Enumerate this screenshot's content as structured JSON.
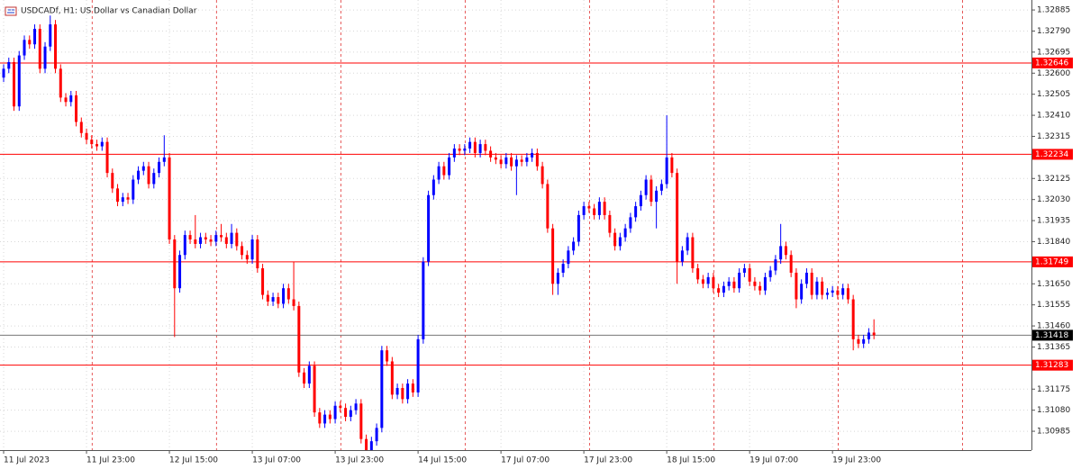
{
  "chart_data": {
    "type": "candlestick",
    "title": "USDCADf, H1:  US Dollar vs Canadian Dollar",
    "bull_color": "#0000ff",
    "bear_color": "#ff0000",
    "grid": true,
    "ylim": [
      1.309,
      1.3293
    ],
    "yticks": [
      1.32885,
      {
        "value": 1.3279,
        "label": "1.32790"
      },
      1.32695,
      {
        "value": 1.326,
        "label": "1.32600"
      },
      1.32505,
      {
        "value": 1.3241,
        "label": "1.32410"
      },
      1.32315,
      1.32125,
      {
        "value": 1.3203,
        "label": "1.32030"
      },
      1.31935,
      {
        "value": 1.3184,
        "label": "1.31840"
      },
      {
        "value": 1.3165,
        "label": "1.31650"
      },
      1.31555,
      {
        "value": 1.3146,
        "label": "1.31460"
      },
      1.31365,
      1.31175,
      {
        "value": 1.3108,
        "label": "1.31080"
      },
      1.30985
    ],
    "xlim": [
      -0.7,
      198.4
    ],
    "xticks": [
      {
        "value": 0,
        "label": "11 Jul 2023"
      },
      {
        "value": 16,
        "label": "11 Jul 23:00"
      },
      {
        "value": 32,
        "label": "12 Jul 15:00"
      },
      {
        "value": 48,
        "label": "13 Jul 07:00"
      },
      {
        "value": 64,
        "label": "13 Jul 23:00"
      },
      {
        "value": 80,
        "label": "14 Jul 15:00"
      },
      {
        "value": 96,
        "label": "17 Jul 07:00"
      },
      {
        "value": 112,
        "label": "17 Jul 23:00"
      },
      {
        "value": 128,
        "label": "18 Jul 15:00"
      },
      {
        "value": 144,
        "label": "19 Jul 07:00"
      },
      {
        "value": 160,
        "label": "19 Jul 23:00"
      }
    ],
    "levels": [
      1.32646,
      1.32234,
      1.31749,
      1.31283
    ],
    "level_color": "#ff0000",
    "bid": 1.31418,
    "open": [
      1.3258,
      1.3262,
      1.3265,
      1.3245,
      1.3268,
      1.3275,
      1.3273,
      1.328,
      1.3262,
      1.3272,
      1.3282,
      1.3262,
      1.3249,
      1.3247,
      1.325,
      1.3238,
      1.3233,
      1.323,
      1.3228,
      1.3227,
      1.3229,
      1.3215,
      1.3208,
      1.3202,
      1.3204,
      1.3203,
      1.3212,
      1.3216,
      1.3218,
      1.321,
      1.3215,
      1.322,
      1.3222,
      1.3185,
      1.3163,
      1.3178,
      1.3187,
      1.3185,
      1.3183,
      1.3186,
      1.3185,
      1.3184,
      1.3187,
      1.3186,
      1.3183,
      1.3188,
      1.3182,
      1.3178,
      1.3176,
      1.3185,
      1.3172,
      1.316,
      1.3157,
      1.3159,
      1.3156,
      1.3163,
      1.3158,
      1.3155,
      1.3125,
      1.312,
      1.3128,
      1.3107,
      1.3102,
      1.3106,
      1.3104,
      1.311,
      1.3109,
      1.3105,
      1.3108,
      1.3111,
      1.3095,
      1.309,
      1.3094,
      1.31,
      1.3135,
      1.313,
      1.3115,
      1.3118,
      1.3113,
      1.312,
      1.3116,
      1.314,
      1.3175,
      1.3205,
      1.3212,
      1.3218,
      1.3214,
      1.3222,
      1.3226,
      1.3225,
      1.3226,
      1.3229,
      1.3224,
      1.3228,
      1.3225,
      1.3222,
      1.3221,
      1.3219,
      1.3222,
      1.3218,
      1.3221,
      1.322,
      1.3222,
      1.3224,
      1.3218,
      1.321,
      1.319,
      1.3165,
      1.317,
      1.3174,
      1.318,
      1.3184,
      1.3196,
      1.32,
      1.3199,
      1.3196,
      1.3202,
      1.3196,
      1.3188,
      1.3182,
      1.3186,
      1.319,
      1.3195,
      1.32,
      1.3205,
      1.3212,
      1.3202,
      1.3207,
      1.321,
      1.3222,
      1.3215,
      1.3175,
      1.318,
      1.3186,
      1.3172,
      1.3167,
      1.3165,
      1.3168,
      1.3163,
      1.3161,
      1.3164,
      1.3166,
      1.3163,
      1.317,
      1.3172,
      1.3166,
      1.3164,
      1.3162,
      1.3168,
      1.3171,
      1.3176,
      1.3182,
      1.3178,
      1.317,
      1.3158,
      1.3165,
      1.317,
      1.316,
      1.3166,
      1.316,
      1.3161,
      1.3162,
      1.316,
      1.3163,
      1.3158,
      1.314,
      1.3138,
      1.314,
      1.3143
    ],
    "high": [
      1.3264,
      1.3267,
      1.3267,
      1.327,
      1.3277,
      1.3277,
      1.3282,
      1.3282,
      1.3274,
      1.3286,
      1.3284,
      1.3264,
      1.3251,
      1.3252,
      1.3252,
      1.324,
      1.3235,
      1.3232,
      1.323,
      1.3231,
      1.3231,
      1.3217,
      1.321,
      1.3206,
      1.3206,
      1.3214,
      1.3218,
      1.322,
      1.322,
      1.3217,
      1.3222,
      1.3232,
      1.3224,
      1.3187,
      1.318,
      1.3189,
      1.3189,
      1.3196,
      1.3188,
      1.3188,
      1.3187,
      1.3189,
      1.3192,
      1.3188,
      1.3192,
      1.319,
      1.3184,
      1.318,
      1.3187,
      1.3187,
      1.3174,
      1.3162,
      1.3161,
      1.3161,
      1.3165,
      1.3165,
      1.3175,
      1.3157,
      1.3127,
      1.313,
      1.313,
      1.3109,
      1.3108,
      1.3108,
      1.3112,
      1.3112,
      1.3111,
      1.311,
      1.3113,
      1.3113,
      1.3097,
      1.3096,
      1.3102,
      1.3137,
      1.3137,
      1.3132,
      1.312,
      1.312,
      1.3122,
      1.3122,
      1.3142,
      1.3177,
      1.3207,
      1.3214,
      1.322,
      1.322,
      1.3224,
      1.3228,
      1.3228,
      1.3228,
      1.3231,
      1.3231,
      1.323,
      1.323,
      1.3227,
      1.3224,
      1.3223,
      1.3224,
      1.3224,
      1.3223,
      1.3223,
      1.3224,
      1.3226,
      1.3226,
      1.322,
      1.3212,
      1.3192,
      1.3172,
      1.3176,
      1.3182,
      1.3186,
      1.3198,
      1.3202,
      1.3202,
      1.3201,
      1.3204,
      1.3204,
      1.3198,
      1.319,
      1.3188,
      1.3192,
      1.3197,
      1.3202,
      1.3207,
      1.3214,
      1.3214,
      1.3209,
      1.3212,
      1.3241,
      1.3224,
      1.3217,
      1.3182,
      1.3188,
      1.3188,
      1.3174,
      1.3169,
      1.317,
      1.317,
      1.3165,
      1.3166,
      1.3168,
      1.3168,
      1.3172,
      1.3174,
      1.3174,
      1.3168,
      1.3166,
      1.317,
      1.3173,
      1.3178,
      1.3192,
      1.3184,
      1.318,
      1.3172,
      1.3167,
      1.3172,
      1.3172,
      1.3168,
      1.3168,
      1.3163,
      1.3164,
      1.3164,
      1.3165,
      1.3165,
      1.316,
      1.3142,
      1.3142,
      1.3145,
      1.3149
    ],
    "low": [
      1.3256,
      1.326,
      1.3243,
      1.3243,
      1.3266,
      1.3271,
      1.3271,
      1.326,
      1.326,
      1.327,
      1.326,
      1.3247,
      1.3245,
      1.3245,
      1.3236,
      1.3231,
      1.3228,
      1.3226,
      1.3225,
      1.3225,
      1.3213,
      1.3206,
      1.32,
      1.32,
      1.3201,
      1.3201,
      1.321,
      1.3214,
      1.3208,
      1.3208,
      1.3213,
      1.3218,
      1.3183,
      1.3141,
      1.3161,
      1.3176,
      1.3183,
      1.3181,
      1.3181,
      1.3183,
      1.3182,
      1.3182,
      1.3184,
      1.3181,
      1.3181,
      1.318,
      1.3176,
      1.3174,
      1.3174,
      1.317,
      1.3158,
      1.3155,
      1.3155,
      1.3154,
      1.3154,
      1.3156,
      1.3153,
      1.3123,
      1.3118,
      1.3118,
      1.3105,
      1.31,
      1.31,
      1.3102,
      1.3102,
      1.3107,
      1.3103,
      1.3103,
      1.3106,
      1.3093,
      1.3088,
      1.3088,
      1.3092,
      1.3098,
      1.3128,
      1.3113,
      1.3113,
      1.3111,
      1.3111,
      1.3114,
      1.3114,
      1.3138,
      1.3173,
      1.3203,
      1.321,
      1.3212,
      1.3212,
      1.322,
      1.3223,
      1.3223,
      1.3224,
      1.3222,
      1.3222,
      1.3223,
      1.322,
      1.3219,
      1.3217,
      1.3217,
      1.3216,
      1.3205,
      1.3218,
      1.3218,
      1.322,
      1.3216,
      1.3208,
      1.3188,
      1.316,
      1.316,
      1.3168,
      1.3172,
      1.3178,
      1.3182,
      1.3194,
      1.3197,
      1.3194,
      1.3194,
      1.3194,
      1.3186,
      1.318,
      1.318,
      1.3184,
      1.3188,
      1.3193,
      1.3198,
      1.3203,
      1.32,
      1.319,
      1.3205,
      1.3208,
      1.3213,
      1.3165,
      1.3173,
      1.3178,
      1.317,
      1.3165,
      1.3163,
      1.3163,
      1.3161,
      1.3159,
      1.3159,
      1.3162,
      1.3161,
      1.3161,
      1.3168,
      1.3164,
      1.3162,
      1.316,
      1.316,
      1.3166,
      1.3169,
      1.3174,
      1.3176,
      1.3168,
      1.3154,
      1.3156,
      1.3163,
      1.3158,
      1.3158,
      1.3158,
      1.3158,
      1.3159,
      1.3158,
      1.3158,
      1.3156,
      1.3135,
      1.3136,
      1.3136,
      1.3138,
      1.314
    ],
    "close": [
      1.3262,
      1.3265,
      1.3245,
      1.3268,
      1.3275,
      1.3273,
      1.328,
      1.3262,
      1.3272,
      1.3282,
      1.3262,
      1.3249,
      1.3247,
      1.325,
      1.3238,
      1.3233,
      1.323,
      1.3228,
      1.3227,
      1.3229,
      1.3215,
      1.3208,
      1.3202,
      1.3204,
      1.3203,
      1.3212,
      1.3216,
      1.3218,
      1.321,
      1.3215,
      1.322,
      1.3222,
      1.3185,
      1.3163,
      1.3178,
      1.3187,
      1.3185,
      1.3183,
      1.3186,
      1.3185,
      1.3184,
      1.3187,
      1.3186,
      1.3183,
      1.3188,
      1.3182,
      1.3178,
      1.3176,
      1.3185,
      1.3172,
      1.316,
      1.3157,
      1.3159,
      1.3156,
      1.3163,
      1.3158,
      1.3155,
      1.3125,
      1.312,
      1.3128,
      1.3107,
      1.3102,
      1.3106,
      1.3104,
      1.311,
      1.3109,
      1.3105,
      1.3108,
      1.3111,
      1.3095,
      1.309,
      1.3094,
      1.31,
      1.3135,
      1.313,
      1.3115,
      1.3118,
      1.3113,
      1.312,
      1.3116,
      1.314,
      1.3175,
      1.3205,
      1.3212,
      1.3218,
      1.3214,
      1.3222,
      1.3226,
      1.3225,
      1.3226,
      1.3229,
      1.3224,
      1.3228,
      1.3225,
      1.3222,
      1.3221,
      1.3219,
      1.3222,
      1.3218,
      1.3221,
      1.322,
      1.3222,
      1.3224,
      1.3218,
      1.321,
      1.319,
      1.3165,
      1.317,
      1.3174,
      1.318,
      1.3184,
      1.3196,
      1.32,
      1.3199,
      1.3196,
      1.3202,
      1.3196,
      1.3188,
      1.3182,
      1.3186,
      1.319,
      1.3195,
      1.32,
      1.3205,
      1.3212,
      1.3202,
      1.3207,
      1.321,
      1.3222,
      1.3215,
      1.3175,
      1.318,
      1.3186,
      1.3172,
      1.3167,
      1.3165,
      1.3168,
      1.3163,
      1.3161,
      1.3164,
      1.3166,
      1.3163,
      1.317,
      1.3172,
      1.3166,
      1.3164,
      1.3162,
      1.3168,
      1.3171,
      1.3176,
      1.3182,
      1.3178,
      1.317,
      1.3158,
      1.3165,
      1.317,
      1.316,
      1.3166,
      1.316,
      1.3161,
      1.3162,
      1.316,
      1.3163,
      1.3158,
      1.314,
      1.3138,
      1.314,
      1.3143,
      1.31418
    ]
  }
}
